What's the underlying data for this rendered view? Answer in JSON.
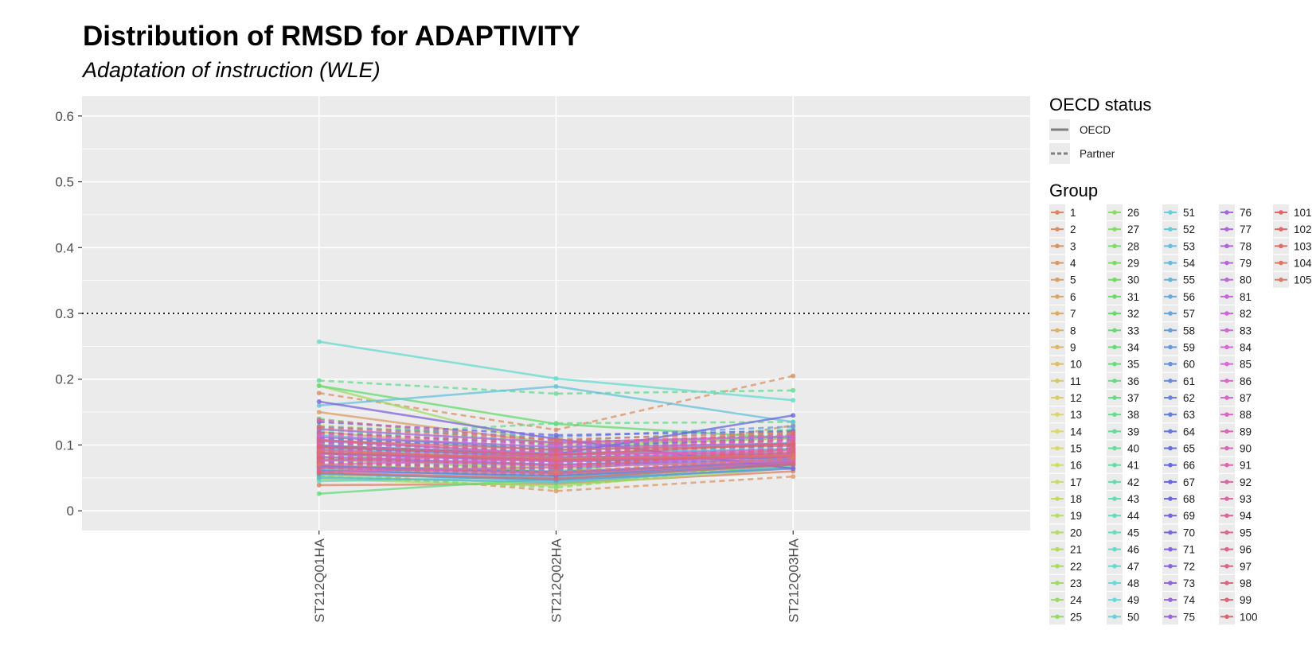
{
  "chart_data": {
    "type": "line",
    "title": "Distribution of RMSD for ADAPTIVITY",
    "subtitle": "Adaptation of instruction (WLE)",
    "xlabel": "",
    "ylabel": "",
    "categories": [
      "ST212Q01HA",
      "ST212Q02HA",
      "ST212Q03HA"
    ],
    "ylim": [
      -0.03,
      0.63
    ],
    "yticks": [
      0,
      0.1,
      0.2,
      0.3,
      0.4,
      0.5,
      0.6
    ],
    "ytick_labels": [
      "0",
      "0.1",
      "0.2",
      "0.3",
      "0.4",
      "0.5",
      "0.6"
    ],
    "threshold": 0.3,
    "grid": true,
    "legend_linetype": {
      "title": "OECD status",
      "entries": [
        {
          "label": "OECD",
          "dash": "solid"
        },
        {
          "label": "Partner",
          "dash": "dashed"
        }
      ]
    },
    "legend_group_title": "Group",
    "group_labels": [
      "1",
      "2",
      "3",
      "4",
      "5",
      "6",
      "7",
      "8",
      "9",
      "10",
      "11",
      "12",
      "13",
      "14",
      "15",
      "16",
      "17",
      "18",
      "19",
      "20",
      "21",
      "22",
      "23",
      "24",
      "25",
      "26",
      "27",
      "28",
      "29",
      "30",
      "31",
      "32",
      "33",
      "34",
      "35",
      "36",
      "37",
      "38",
      "39",
      "40",
      "41",
      "42",
      "43",
      "44",
      "45",
      "46",
      "47",
      "48",
      "49",
      "50",
      "51",
      "52",
      "53",
      "54",
      "55",
      "56",
      "57",
      "58",
      "59",
      "60",
      "61",
      "62",
      "63",
      "64",
      "65",
      "66",
      "67",
      "68",
      "69",
      "70",
      "71",
      "72",
      "73",
      "74",
      "75",
      "76",
      "77",
      "78",
      "79",
      "80",
      "81",
      "82",
      "83",
      "84",
      "85",
      "86",
      "87",
      "88",
      "89",
      "90",
      "91",
      "92",
      "93",
      "94",
      "95",
      "96",
      "97",
      "98",
      "99",
      "100",
      "101",
      "102",
      "103",
      "104",
      "105"
    ],
    "oecd_groups": [
      "1",
      "5",
      "7",
      "12",
      "14",
      "16",
      "19",
      "22",
      "23",
      "25",
      "27",
      "29",
      "33",
      "34",
      "35",
      "40",
      "43",
      "46",
      "47",
      "48",
      "51",
      "53",
      "55",
      "56",
      "58",
      "60",
      "61",
      "63",
      "65",
      "66",
      "70",
      "71",
      "73",
      "75",
      "76",
      "78",
      "83",
      "86",
      "88",
      "89",
      "90",
      "91",
      "95",
      "97",
      "99",
      "100",
      "101",
      "104"
    ],
    "series": [
      {
        "name": "1",
        "values": [
          0.039,
          0.041,
          0.06
        ]
      },
      {
        "name": "2",
        "values": [
          0.095,
          0.07,
          0.13
        ]
      },
      {
        "name": "3",
        "values": [
          0.179,
          0.123,
          0.205
        ]
      },
      {
        "name": "4",
        "values": [
          0.06,
          0.03,
          0.052
        ]
      },
      {
        "name": "5",
        "values": [
          0.15,
          0.102,
          0.11
        ]
      },
      {
        "name": "6",
        "values": [
          0.084,
          0.068,
          0.078
        ]
      },
      {
        "name": "7",
        "values": [
          0.12,
          0.09,
          0.085
        ]
      },
      {
        "name": "8",
        "values": [
          0.07,
          0.055,
          0.08
        ]
      },
      {
        "name": "9",
        "values": [
          0.11,
          0.095,
          0.12
        ]
      },
      {
        "name": "10",
        "values": [
          0.062,
          0.072,
          0.095
        ]
      },
      {
        "name": "11",
        "values": [
          0.085,
          0.105,
          0.092
        ]
      },
      {
        "name": "12",
        "values": [
          0.1,
          0.082,
          0.075
        ]
      },
      {
        "name": "13",
        "values": [
          0.072,
          0.06,
          0.1
        ]
      },
      {
        "name": "14",
        "values": [
          0.055,
          0.048,
          0.07
        ]
      },
      {
        "name": "15",
        "values": [
          0.13,
          0.11,
          0.088
        ]
      },
      {
        "name": "16",
        "values": [
          0.093,
          0.077,
          0.083
        ]
      },
      {
        "name": "17",
        "values": [
          0.058,
          0.088,
          0.11
        ]
      },
      {
        "name": "18",
        "values": [
          0.118,
          0.1,
          0.096
        ]
      },
      {
        "name": "19",
        "values": [
          0.077,
          0.066,
          0.09
        ]
      },
      {
        "name": "20",
        "values": [
          0.066,
          0.05,
          0.068
        ]
      },
      {
        "name": "21",
        "values": [
          0.104,
          0.086,
          0.098
        ]
      },
      {
        "name": "22",
        "values": [
          0.048,
          0.038,
          0.065
        ]
      },
      {
        "name": "23",
        "values": [
          0.19,
          0.097,
          0.111
        ]
      },
      {
        "name": "24",
        "values": [
          0.112,
          0.09,
          0.123
        ]
      },
      {
        "name": "25",
        "values": [
          0.088,
          0.056,
          0.078
        ]
      },
      {
        "name": "26",
        "values": [
          0.053,
          0.035,
          0.075
        ]
      },
      {
        "name": "27",
        "values": [
          0.08,
          0.07,
          0.072
        ]
      },
      {
        "name": "28",
        "values": [
          0.125,
          0.093,
          0.105
        ]
      },
      {
        "name": "29",
        "values": [
          0.069,
          0.06,
          0.094
        ]
      },
      {
        "name": "30",
        "values": [
          0.099,
          0.08,
          0.087
        ]
      },
      {
        "name": "31",
        "values": [
          0.14,
          0.098,
          0.115
        ]
      },
      {
        "name": "32",
        "values": [
          0.064,
          0.054,
          0.081
        ]
      },
      {
        "name": "33",
        "values": [
          0.19,
          0.132,
          0.11
        ]
      },
      {
        "name": "34",
        "values": [
          0.052,
          0.042,
          0.068
        ]
      },
      {
        "name": "35",
        "values": [
          0.026,
          0.049,
          0.07
        ]
      },
      {
        "name": "36",
        "values": [
          0.091,
          0.074,
          0.086
        ]
      },
      {
        "name": "37",
        "values": [
          0.113,
          0.133,
          0.135
        ]
      },
      {
        "name": "38",
        "values": [
          0.198,
          0.178,
          0.183
        ]
      },
      {
        "name": "39",
        "values": [
          0.076,
          0.068,
          0.101
        ]
      },
      {
        "name": "40",
        "values": [
          0.057,
          0.046,
          0.072
        ]
      },
      {
        "name": "41",
        "values": [
          0.108,
          0.096,
          0.118
        ]
      },
      {
        "name": "42",
        "values": [
          0.086,
          0.073,
          0.083
        ]
      },
      {
        "name": "43",
        "values": [
          0.045,
          0.052,
          0.077
        ]
      },
      {
        "name": "44",
        "values": [
          0.122,
          0.106,
          0.124
        ]
      },
      {
        "name": "45",
        "values": [
          0.071,
          0.062,
          0.088
        ]
      },
      {
        "name": "46",
        "values": [
          0.094,
          0.083,
          0.079
        ]
      },
      {
        "name": "47",
        "values": [
          0.257,
          0.201,
          0.168
        ]
      },
      {
        "name": "48",
        "values": [
          0.063,
          0.051,
          0.069
        ]
      },
      {
        "name": "49",
        "values": [
          0.101,
          0.088,
          0.096
        ]
      },
      {
        "name": "50",
        "values": [
          0.083,
          0.07,
          0.091
        ]
      },
      {
        "name": "51",
        "values": [
          0.115,
          0.092,
          0.103
        ]
      },
      {
        "name": "52",
        "values": [
          0.074,
          0.064,
          0.083
        ]
      },
      {
        "name": "53",
        "values": [
          0.16,
          0.189,
          0.135
        ]
      },
      {
        "name": "54",
        "values": [
          0.09,
          0.079,
          0.1
        ]
      },
      {
        "name": "55",
        "values": [
          0.05,
          0.044,
          0.066
        ]
      },
      {
        "name": "56",
        "values": [
          0.106,
          0.087,
          0.094
        ]
      },
      {
        "name": "57",
        "values": [
          0.081,
          0.072,
          0.085
        ]
      },
      {
        "name": "58",
        "values": [
          0.067,
          0.058,
          0.073
        ]
      },
      {
        "name": "59",
        "values": [
          0.128,
          0.112,
          0.128
        ]
      },
      {
        "name": "60",
        "values": [
          0.056,
          0.047,
          0.064
        ]
      },
      {
        "name": "61",
        "values": [
          0.097,
          0.081,
          0.087
        ]
      },
      {
        "name": "62",
        "values": [
          0.073,
          0.061,
          0.095
        ]
      },
      {
        "name": "63",
        "values": [
          0.088,
          0.078,
          0.082
        ]
      },
      {
        "name": "64",
        "values": [
          0.11,
          0.094,
          0.112
        ]
      },
      {
        "name": "65",
        "values": [
          0.061,
          0.053,
          0.071
        ]
      },
      {
        "name": "66",
        "values": [
          0.099,
          0.086,
          0.145
        ]
      },
      {
        "name": "67",
        "values": [
          0.135,
          0.115,
          0.121
        ]
      },
      {
        "name": "68",
        "values": [
          0.079,
          0.068,
          0.089
        ]
      },
      {
        "name": "69",
        "values": [
          0.104,
          0.09,
          0.099
        ]
      },
      {
        "name": "70",
        "values": [
          0.166,
          0.109,
          0.064
        ]
      },
      {
        "name": "71",
        "values": [
          0.087,
          0.075,
          0.081
        ]
      },
      {
        "name": "72",
        "values": [
          0.119,
          0.101,
          0.107
        ]
      },
      {
        "name": "73",
        "values": [
          0.068,
          0.059,
          0.075
        ]
      },
      {
        "name": "74",
        "values": [
          0.095,
          0.083,
          0.092
        ]
      },
      {
        "name": "75",
        "values": [
          0.082,
          0.07,
          0.078
        ]
      },
      {
        "name": "76",
        "values": [
          0.112,
          0.097,
          0.102
        ]
      },
      {
        "name": "77",
        "values": [
          0.075,
          0.065,
          0.087
        ]
      },
      {
        "name": "78",
        "values": [
          0.124,
          0.104,
          0.113
        ]
      },
      {
        "name": "79",
        "values": [
          0.089,
          0.08,
          0.094
        ]
      },
      {
        "name": "80",
        "values": [
          0.066,
          0.057,
          0.079
        ]
      },
      {
        "name": "81",
        "values": [
          0.105,
          0.089,
          0.108
        ]
      },
      {
        "name": "82",
        "values": [
          0.092,
          0.082,
          0.09
        ]
      },
      {
        "name": "83",
        "values": [
          0.078,
          0.069,
          0.084
        ]
      },
      {
        "name": "84",
        "values": [
          0.115,
          0.099,
          0.115
        ]
      },
      {
        "name": "85",
        "values": [
          0.085,
          0.073,
          0.097
        ]
      },
      {
        "name": "86",
        "values": [
          0.07,
          0.079,
          0.083
        ]
      },
      {
        "name": "87",
        "values": [
          0.098,
          0.087,
          0.101
        ]
      },
      {
        "name": "88",
        "values": [
          0.06,
          0.066,
          0.076
        ]
      },
      {
        "name": "89",
        "values": [
          0.108,
          0.085,
          0.092
        ]
      },
      {
        "name": "90",
        "values": [
          0.076,
          0.086,
          0.088
        ]
      },
      {
        "name": "91",
        "values": [
          0.093,
          0.076,
          0.086
        ]
      },
      {
        "name": "92",
        "values": [
          0.138,
          0.107,
          0.104
        ]
      },
      {
        "name": "93",
        "values": [
          0.083,
          0.074,
          0.094
        ]
      },
      {
        "name": "94",
        "values": [
          0.102,
          0.091,
          0.109
        ]
      },
      {
        "name": "95",
        "values": [
          0.065,
          0.056,
          0.073
        ]
      },
      {
        "name": "96",
        "values": [
          0.118,
          0.103,
          0.116
        ]
      },
      {
        "name": "97",
        "values": [
          0.088,
          0.077,
          0.082
        ]
      },
      {
        "name": "98",
        "values": [
          0.073,
          0.064,
          0.095
        ]
      },
      {
        "name": "99",
        "values": [
          0.107,
          0.093,
          0.099
        ]
      },
      {
        "name": "100",
        "values": [
          0.058,
          0.049,
          0.07
        ]
      },
      {
        "name": "101",
        "values": [
          0.097,
          0.085,
          0.102
        ]
      },
      {
        "name": "102",
        "values": [
          0.08,
          0.069,
          0.089
        ]
      },
      {
        "name": "103",
        "values": [
          0.127,
          0.108,
          0.119
        ]
      },
      {
        "name": "104",
        "values": [
          0.09,
          0.08,
          0.084
        ]
      },
      {
        "name": "105",
        "values": [
          0.071,
          0.059,
          0.08
        ]
      }
    ]
  }
}
